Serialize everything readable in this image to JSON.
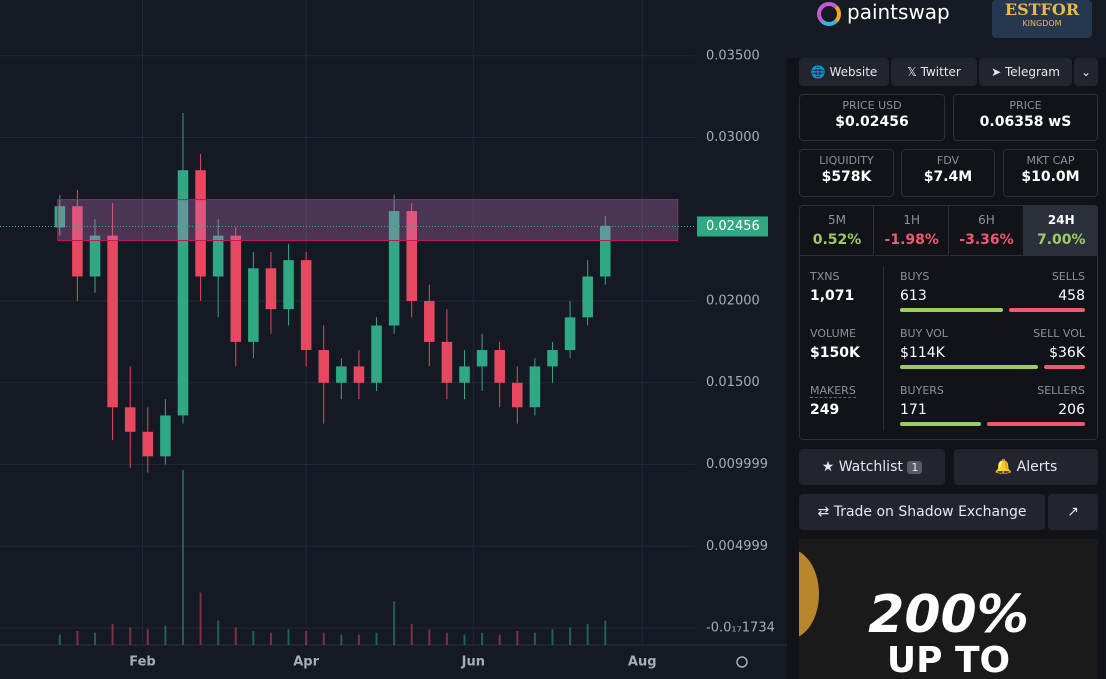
{
  "chart_data": {
    "type": "candlestick",
    "x": [
      0,
      1,
      2,
      3,
      4,
      5,
      6,
      7,
      8,
      9,
      10,
      11,
      12,
      13,
      14,
      15,
      16,
      17,
      18,
      19,
      20,
      21,
      22,
      23,
      24,
      25,
      26,
      27,
      28,
      29,
      30,
      31
    ],
    "open": [
      0.0245,
      0.0258,
      0.0215,
      0.024,
      0.0135,
      0.012,
      0.0105,
      0.013,
      0.028,
      0.0215,
      0.024,
      0.0175,
      0.022,
      0.0195,
      0.0225,
      0.017,
      0.015,
      0.016,
      0.015,
      0.0185,
      0.0255,
      0.02,
      0.0175,
      0.015,
      0.016,
      0.017,
      0.015,
      0.0135,
      0.016,
      0.017,
      0.019,
      0.0215
    ],
    "high": [
      0.0265,
      0.0268,
      0.025,
      0.026,
      0.016,
      0.0135,
      0.014,
      0.0315,
      0.029,
      0.025,
      0.0245,
      0.023,
      0.023,
      0.0235,
      0.023,
      0.0185,
      0.0165,
      0.017,
      0.019,
      0.0265,
      0.026,
      0.021,
      0.0195,
      0.017,
      0.018,
      0.0175,
      0.016,
      0.0165,
      0.0175,
      0.02,
      0.0225,
      0.0252
    ],
    "low": [
      0.024,
      0.02,
      0.0205,
      0.0115,
      0.0098,
      0.0095,
      0.01,
      0.0125,
      0.02,
      0.019,
      0.016,
      0.0165,
      0.018,
      0.0185,
      0.016,
      0.0125,
      0.014,
      0.014,
      0.0145,
      0.018,
      0.019,
      0.016,
      0.014,
      0.014,
      0.0145,
      0.0135,
      0.0125,
      0.013,
      0.015,
      0.0165,
      0.0185,
      0.021
    ],
    "close": [
      0.0258,
      0.0215,
      0.024,
      0.0135,
      0.012,
      0.0105,
      0.013,
      0.028,
      0.0215,
      0.024,
      0.0175,
      0.022,
      0.0195,
      0.0225,
      0.017,
      0.015,
      0.016,
      0.015,
      0.0185,
      0.0255,
      0.02,
      0.0175,
      0.015,
      0.016,
      0.017,
      0.015,
      0.0135,
      0.016,
      0.017,
      0.019,
      0.0215,
      0.0246
    ],
    "volume": [
      6,
      8,
      7,
      12,
      10,
      9,
      11,
      100,
      30,
      14,
      10,
      8,
      7,
      9,
      8,
      7,
      6,
      6,
      7,
      25,
      12,
      9,
      7,
      6,
      7,
      6,
      8,
      7,
      9,
      10,
      12,
      14
    ],
    "vlim": [
      0,
      100
    ],
    "xlim": [
      -3.4,
      36.1
    ],
    "xticks": [
      {
        "value": 4.7,
        "label": "Feb"
      },
      {
        "value": 14,
        "label": "Apr"
      },
      {
        "value": 23.5,
        "label": "Jun"
      },
      {
        "value": 33.1,
        "label": "Aug"
      }
    ],
    "ylim": [
      -0.00104,
      0.03841
    ],
    "yticks": [
      {
        "value": 0.035,
        "label": "0.03500"
      },
      {
        "value": 0.03,
        "label": "0.03000"
      },
      {
        "value": 0.02,
        "label": "0.02000"
      },
      {
        "value": 0.015,
        "label": "0.01500"
      },
      0.009999,
      0.004999,
      {
        "value": -1.734e-18,
        "label": "-0.0₁₇1734"
      }
    ],
    "zone": [
      0.0237,
      0.0262
    ],
    "current_price": {
      "value": 0.02456,
      "label": "0.02456"
    },
    "up_color": "#2ea983",
    "down_color": "#e8485f",
    "grid": true
  },
  "panel": {
    "brand": "paintswap",
    "banner": [
      "ESTFOR",
      "KINGDOM"
    ],
    "links": [
      "Website",
      "Twitter",
      "Telegram"
    ],
    "price_usd": {
      "label": "PRICE USD",
      "value": "$0.02456"
    },
    "price": {
      "label": "PRICE",
      "value": "0.06358 wS"
    },
    "liquidity": {
      "label": "LIQUIDITY",
      "value": "$578K"
    },
    "fdv": {
      "label": "FDV",
      "value": "$7.4M"
    },
    "mkt_cap": {
      "label": "MKT CAP",
      "value": "$10.0M"
    },
    "tabs": [
      {
        "label": "5M",
        "change": {
          "value": 0.52,
          "label": "0.52%"
        }
      },
      {
        "label": "1H",
        "change": {
          "value": -1.98,
          "label": "-1.98%"
        }
      },
      {
        "label": "6H",
        "change": {
          "value": -3.36,
          "label": "-3.36%"
        }
      },
      {
        "label": "24H",
        "change": {
          "value": 7.0,
          "label": "7.00%"
        }
      }
    ],
    "txns": {
      "label": "TXNS",
      "value": "1,071"
    },
    "volume": {
      "label": "VOLUME",
      "value": "$150K"
    },
    "makers": {
      "label": "MAKERS",
      "value": "249"
    },
    "buys": {
      "label": "BUYS",
      "value": 613
    },
    "sells": {
      "label": "SELLS",
      "value": 458
    },
    "buy_vol": {
      "label": "BUY VOL",
      "value": {
        "value": 114000,
        "label": "$114K"
      }
    },
    "sell_vol": {
      "label": "SELL VOL",
      "value": {
        "value": 36000,
        "label": "$36K"
      }
    },
    "buyers": {
      "label": "BUYERS",
      "value": 171
    },
    "sellers": {
      "label": "SELLERS",
      "value": 206
    },
    "watchlist": "Watchlist",
    "watch_count": "1",
    "alerts": "Alerts",
    "trade": "Trade on Shadow Exchange",
    "ad": [
      "200%",
      "UP TO"
    ]
  }
}
